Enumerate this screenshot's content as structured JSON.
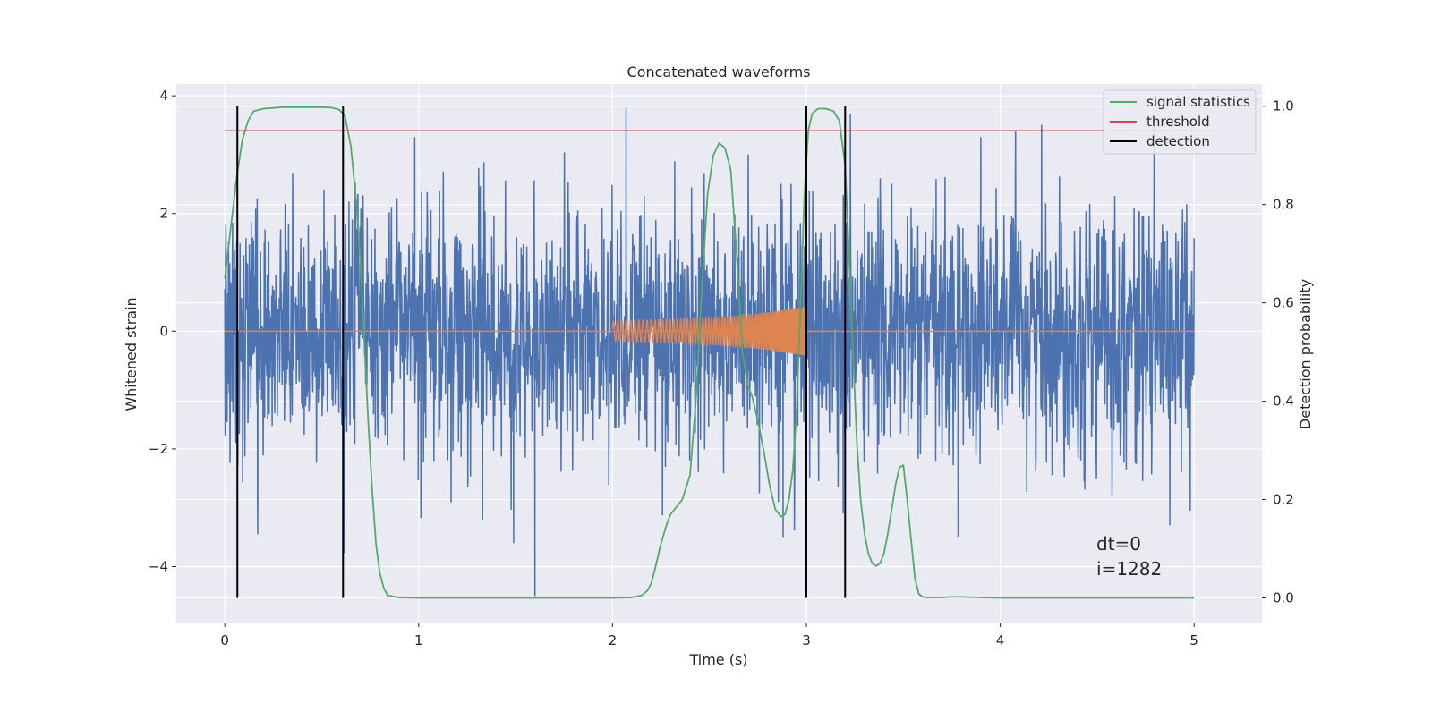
{
  "chart_data": {
    "type": "line",
    "title": "Concatenated waveforms",
    "xlabel": "Time (s)",
    "ylabel_left": "Whitened strain",
    "ylabel_right": "Detection probability",
    "xlim": [
      -0.25,
      5.35
    ],
    "ylim_left": [
      -4.95,
      4.2
    ],
    "ylim_right": [
      -0.05,
      1.045
    ],
    "x_ticks": [
      0,
      1,
      2,
      3,
      4,
      5
    ],
    "x_tick_labels": [
      "0",
      "1",
      "2",
      "3",
      "4",
      "5"
    ],
    "y_left_ticks": [
      4,
      2,
      0,
      -2,
      -4
    ],
    "y_left_tick_labels": [
      "4",
      "2",
      "0",
      "−2",
      "−4"
    ],
    "y_right_ticks": [
      1.0,
      0.8,
      0.6,
      0.4,
      0.2,
      0.0
    ],
    "y_right_tick_labels": [
      "1.0",
      "0.8",
      "0.6",
      "0.4",
      "0.2",
      "0.0"
    ],
    "grid": true,
    "legend_position": "top-right",
    "series": [
      {
        "name": "",
        "axis": "left",
        "kind": "noise",
        "color": "#4c72b0",
        "x_range": [
          0,
          5
        ],
        "amplitude_range": [
          -4.5,
          3.8
        ],
        "notable_spikes": [
          {
            "x": 0.17,
            "y": -3.45
          },
          {
            "x": 0.98,
            "y": 3.3
          },
          {
            "x": 1.33,
            "y": -3.2
          },
          {
            "x": 1.49,
            "y": -3.6
          },
          {
            "x": 1.6,
            "y": -4.5
          },
          {
            "x": 2.07,
            "y": 3.8
          },
          {
            "x": 2.88,
            "y": -3.5
          },
          {
            "x": 3.19,
            "y": -3.1
          },
          {
            "x": 3.9,
            "y": 3.3
          },
          {
            "x": 4.98,
            "y": -3.05
          }
        ]
      },
      {
        "name": "",
        "axis": "left",
        "kind": "chirp",
        "color": "#dd8452",
        "x_range": [
          2.0,
          3.0
        ],
        "envelope": [
          [
            2.0,
            0.17
          ],
          [
            2.3,
            0.2
          ],
          [
            2.6,
            0.25
          ],
          [
            2.8,
            0.32
          ],
          [
            3.0,
            0.42
          ]
        ],
        "baseline": 0
      },
      {
        "name": "signal statistics",
        "axis": "right",
        "color": "#55a868",
        "x": [
          0,
          0.03,
          0.06,
          0.09,
          0.12,
          0.15,
          0.2,
          0.3,
          0.4,
          0.5,
          0.55,
          0.59,
          0.62,
          0.65,
          0.68,
          0.7,
          0.72,
          0.74,
          0.76,
          0.78,
          0.8,
          0.82,
          0.84,
          0.9,
          1.0,
          1.5,
          2.0,
          2.1,
          2.15,
          2.18,
          2.2,
          2.22,
          2.25,
          2.28,
          2.3,
          2.33,
          2.36,
          2.4,
          2.43,
          2.46,
          2.49,
          2.52,
          2.55,
          2.58,
          2.61,
          2.64,
          2.67,
          2.7,
          2.72,
          2.75,
          2.78,
          2.81,
          2.84,
          2.87,
          2.89,
          2.91,
          2.93,
          2.95,
          2.97,
          2.99,
          3.01,
          3.03,
          3.06,
          3.1,
          3.14,
          3.17,
          3.2,
          3.22,
          3.24,
          3.26,
          3.28,
          3.3,
          3.32,
          3.34,
          3.36,
          3.38,
          3.4,
          3.42,
          3.44,
          3.46,
          3.48,
          3.5,
          3.52,
          3.54,
          3.56,
          3.58,
          3.6,
          3.62,
          3.65,
          3.7,
          3.75,
          3.8,
          3.9,
          4.0,
          4.5,
          5.0
        ],
        "y": [
          0.65,
          0.75,
          0.85,
          0.93,
          0.97,
          0.99,
          0.995,
          0.998,
          0.998,
          0.998,
          0.997,
          0.993,
          0.98,
          0.92,
          0.8,
          0.68,
          0.52,
          0.36,
          0.22,
          0.11,
          0.05,
          0.02,
          0.005,
          0.001,
          0.0,
          0.0,
          0.0,
          0.001,
          0.005,
          0.015,
          0.03,
          0.06,
          0.11,
          0.15,
          0.17,
          0.185,
          0.2,
          0.25,
          0.4,
          0.62,
          0.82,
          0.9,
          0.925,
          0.915,
          0.87,
          0.7,
          0.5,
          0.43,
          0.41,
          0.36,
          0.3,
          0.23,
          0.18,
          0.165,
          0.17,
          0.2,
          0.26,
          0.38,
          0.6,
          0.82,
          0.95,
          0.985,
          0.995,
          0.995,
          0.99,
          0.97,
          0.88,
          0.7,
          0.5,
          0.32,
          0.2,
          0.13,
          0.09,
          0.07,
          0.065,
          0.07,
          0.09,
          0.13,
          0.18,
          0.23,
          0.265,
          0.27,
          0.2,
          0.12,
          0.04,
          0.008,
          0.002,
          0.001,
          0.001,
          0.001,
          0.002,
          0.002,
          0.001,
          0.0,
          0.0,
          0.0
        ]
      },
      {
        "name": "threshold",
        "axis": "right",
        "color": "#c44e52",
        "x": [
          0,
          5.1
        ],
        "y": [
          0.95,
          0.95
        ]
      },
      {
        "name": "detection",
        "axis": "right",
        "color": "#000000",
        "kind": "vlines",
        "x": [
          0.065,
          0.61,
          3.0,
          3.2
        ],
        "ymin": 0.0,
        "ymax": 1.0
      }
    ],
    "annotations": {
      "dt": "dt=0",
      "i": "i=1282"
    }
  }
}
